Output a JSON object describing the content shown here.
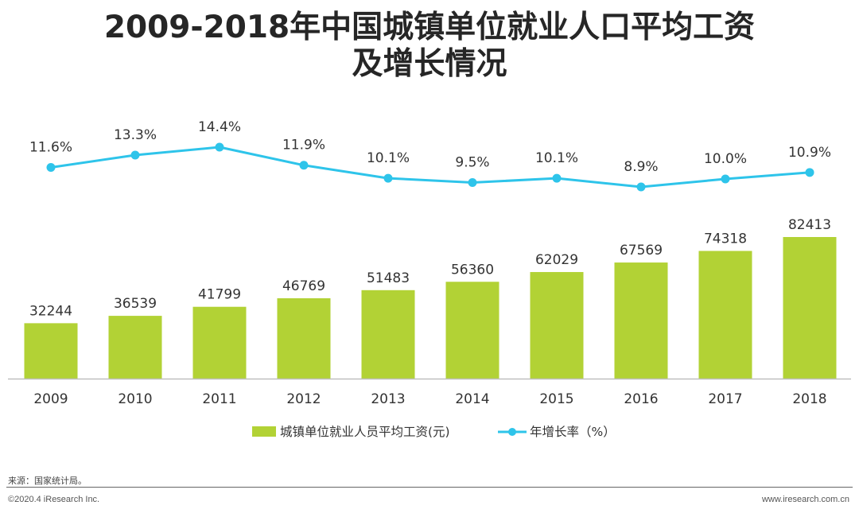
{
  "title": {
    "line1": "2009-2018年中国城镇单位就业人口平均工资",
    "line2": "及增长情况"
  },
  "chart_data": {
    "type": "bar",
    "categories": [
      "2009",
      "2010",
      "2011",
      "2012",
      "2013",
      "2014",
      "2015",
      "2016",
      "2017",
      "2018"
    ],
    "series": [
      {
        "name": "城镇单位就业人员平均工资(元)",
        "type": "bar",
        "color": "#b2d235",
        "values": [
          32244,
          36539,
          41799,
          46769,
          51483,
          56360,
          62029,
          67569,
          74318,
          82413
        ],
        "labels": [
          "32244",
          "36539",
          "41799",
          "46769",
          "51483",
          "56360",
          "62029",
          "67569",
          "74318",
          "82413"
        ]
      },
      {
        "name": "年增长率（%）",
        "type": "line",
        "color": "#2ec4ea",
        "values": [
          11.6,
          13.3,
          14.4,
          11.9,
          10.1,
          9.5,
          10.1,
          8.9,
          10.0,
          10.9
        ],
        "labels": [
          "11.6%",
          "13.3%",
          "14.4%",
          "11.9%",
          "10.1%",
          "9.5%",
          "10.1%",
          "8.9%",
          "10.0%",
          "10.9%"
        ]
      }
    ],
    "legend_position": "bottom",
    "grid": false
  },
  "footer": {
    "source": "来源：国家统计局。",
    "copyright": "©2020.4 iResearch Inc.",
    "website": "www.iresearch.com.cn"
  }
}
